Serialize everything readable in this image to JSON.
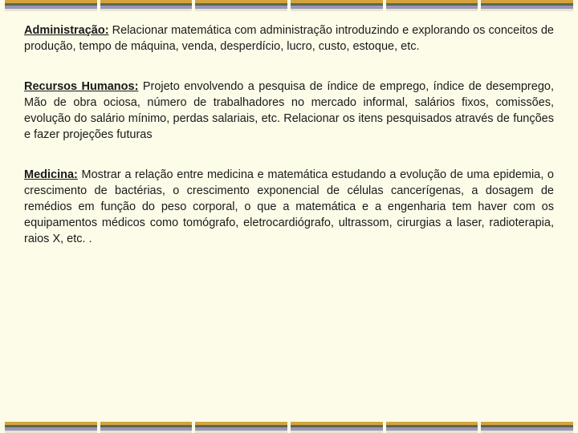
{
  "colors": {
    "background": "#fdfce8",
    "strip_gold": "#d4a33f",
    "strip_dark": "#5a6a4f",
    "strip_purple": "#9b96b8",
    "strip_light": "#e8e4d0",
    "text": "#1a1a1a"
  },
  "border": {
    "segments": 6,
    "bars_per_segment": [
      "#d4a33f",
      "#5a6a4f",
      "#9b96b8",
      "#e8e4d0"
    ]
  },
  "sections": [
    {
      "title": "Administração:",
      "body": " Relacionar matemática com administração introduzindo e explorando os conceitos de produção, tempo de máquina, venda, desperdício, lucro, custo, estoque, etc."
    },
    {
      "title": "Recursos Humanos:",
      "body": " Projeto envolvendo a pesquisa de índice de emprego, índice de desemprego, Mão de obra ociosa, número de trabalhadores no mercado informal, salários fixos, comissões, evolução do salário mínimo, perdas salariais, etc. Relacionar os itens pesquisados através de funções e fazer projeções futuras"
    },
    {
      "title": "Medicina:",
      "body": " Mostrar a relação entre medicina e matemática estudando  a evolução de uma epidemia, o crescimento de bactérias, o crescimento exponencial de células cancerígenas, a dosagem de remédios em função do peso corporal,  o que a matemática e  a engenharia tem haver com os equipamentos médicos como tomógrafo, eletrocardiógrafo, ultrassom,  cirurgias a laser, radioterapia, raios X, etc. ."
    }
  ]
}
